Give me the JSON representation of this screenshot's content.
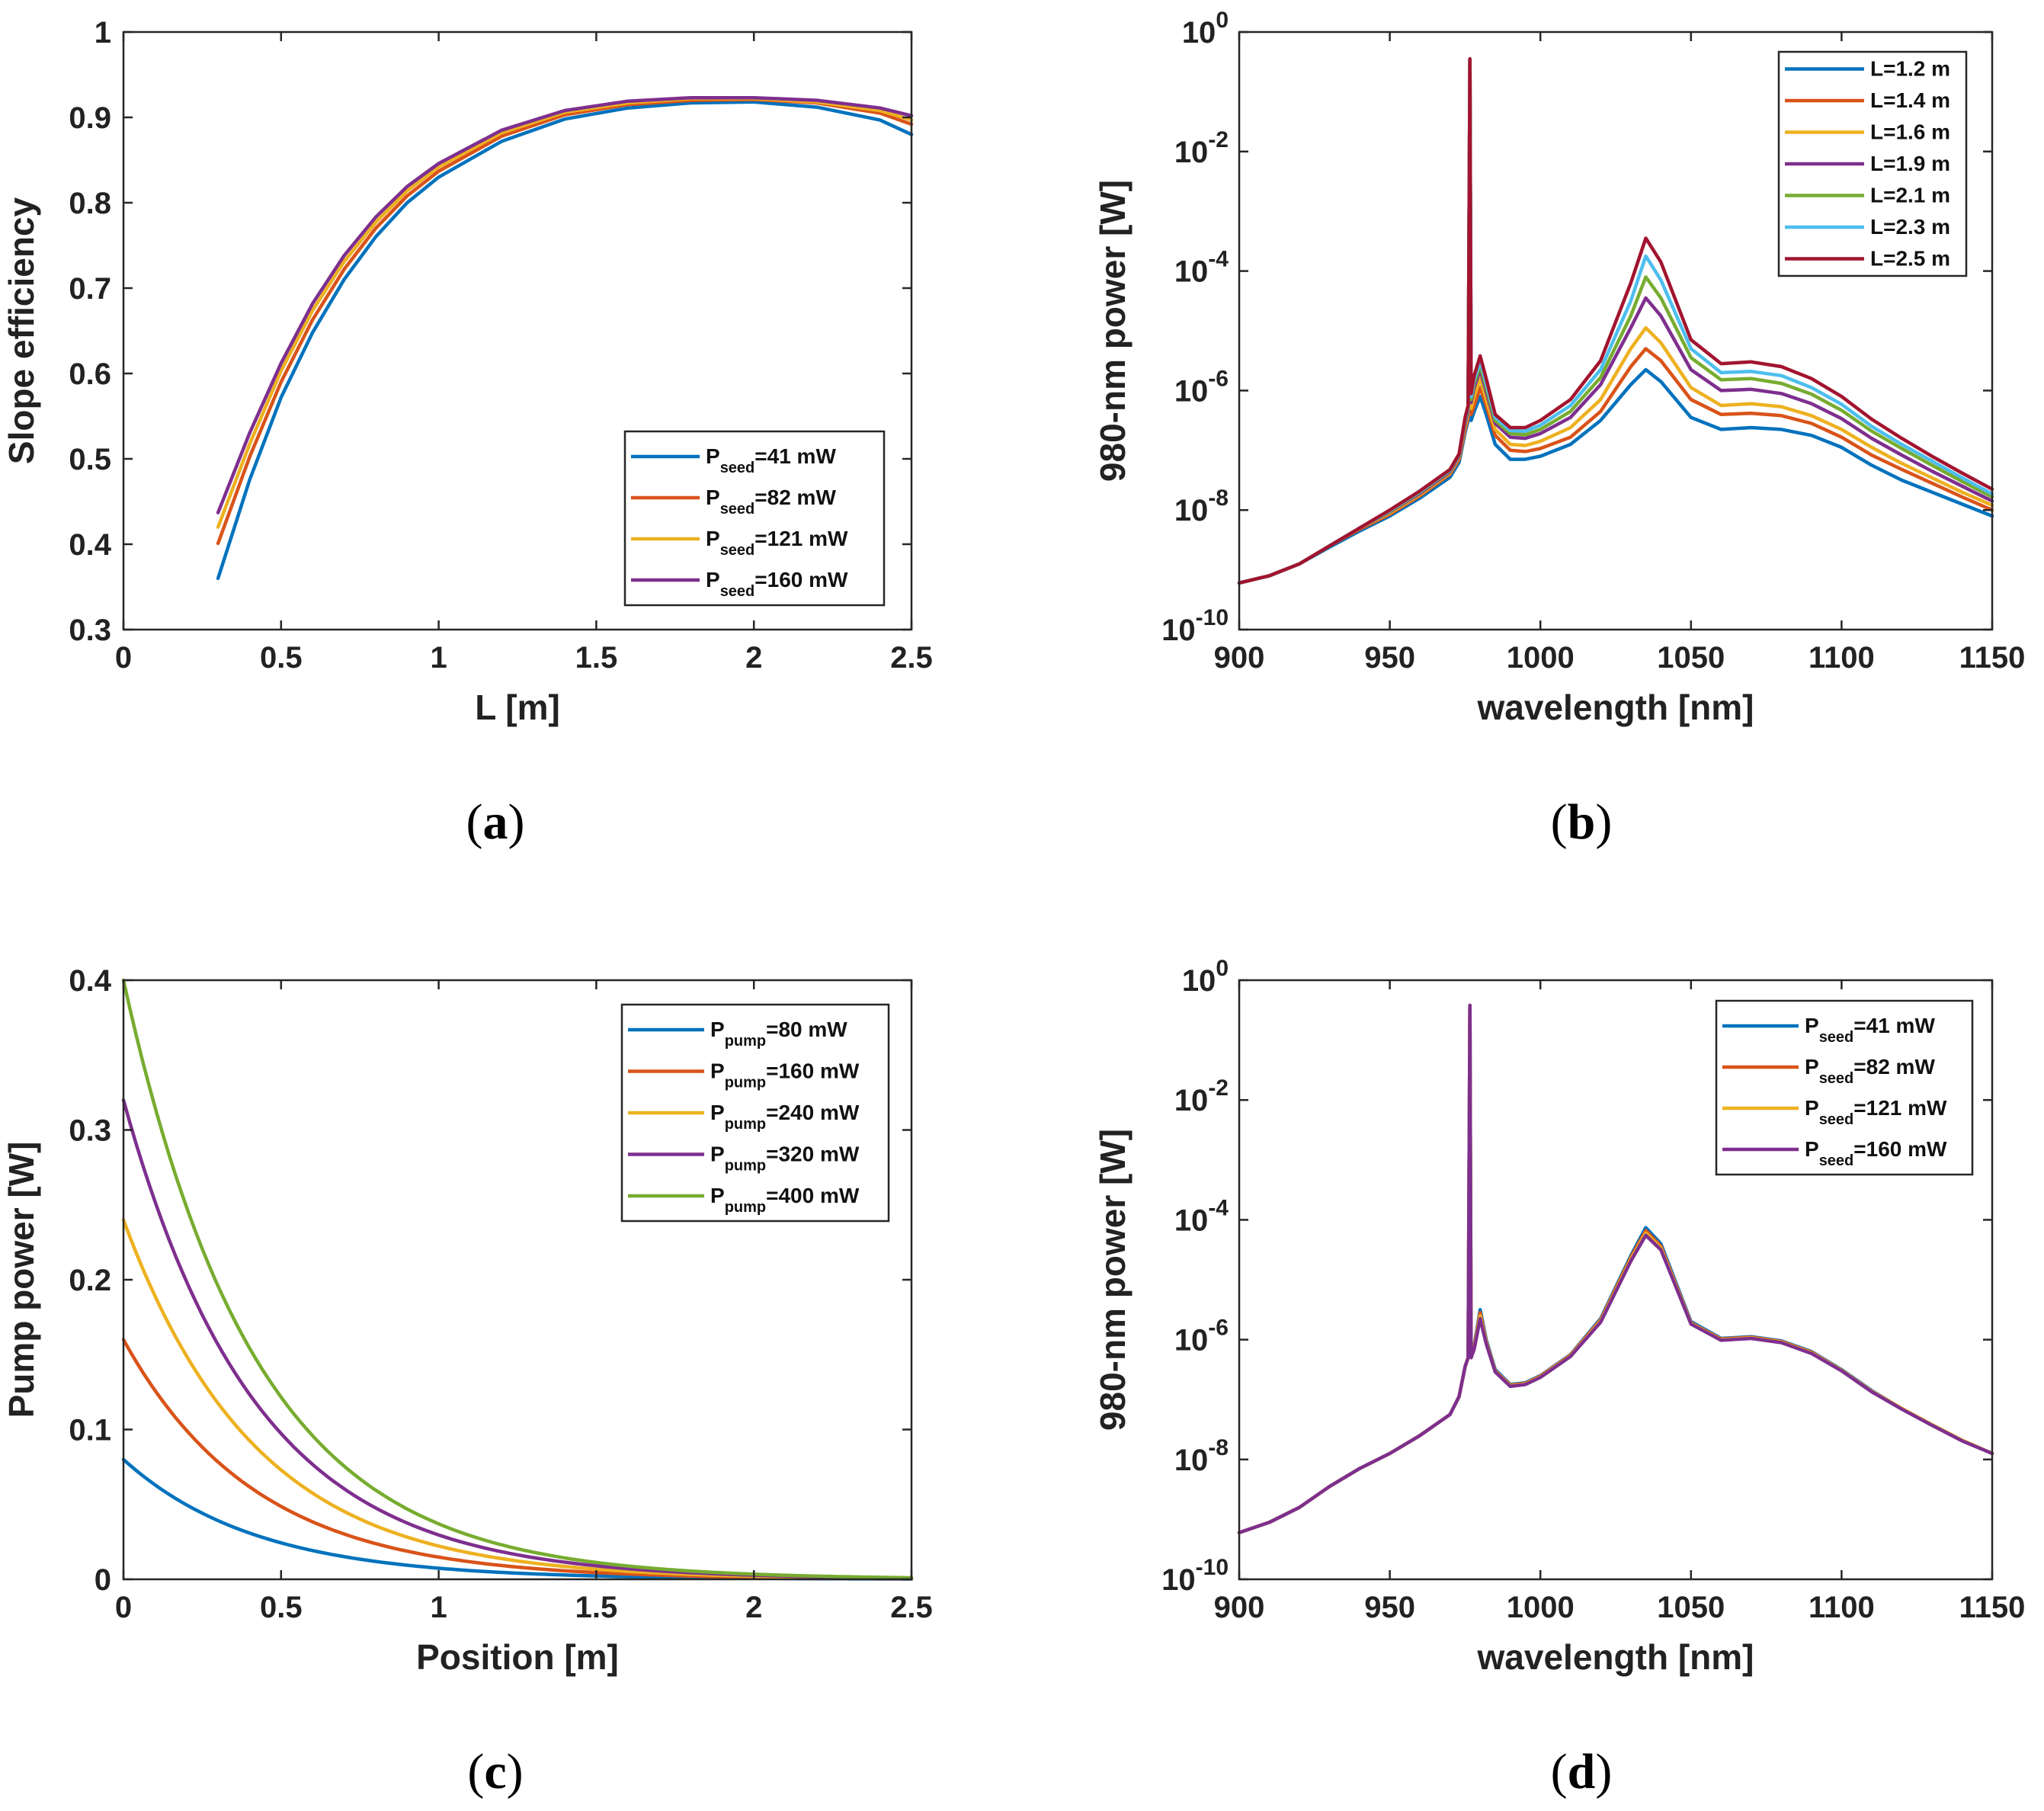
{
  "chart_data": [
    {
      "id": "a",
      "type": "line",
      "caption": "a",
      "xlabel": "L [m]",
      "ylabel": "Slope efficiency",
      "xlim": [
        0,
        2.5
      ],
      "ylim": [
        0.3,
        1
      ],
      "yscale": "linear",
      "xticks": [
        "0",
        "0.5",
        "1",
        "1.5",
        "2",
        "2.5"
      ],
      "yticks": [
        "0.3",
        "0.4",
        "0.5",
        "0.6",
        "0.7",
        "0.8",
        "0.9",
        "1"
      ],
      "legend_position": "bottom-right",
      "x": [
        0.3,
        0.4,
        0.5,
        0.6,
        0.7,
        0.8,
        0.9,
        1.0,
        1.2,
        1.4,
        1.6,
        1.8,
        2.0,
        2.2,
        2.4,
        2.5
      ],
      "series": [
        {
          "name": "P",
          "sub": "seed",
          "suffix": "=41 mW",
          "color": "#0072BD",
          "values": [
            0.36,
            0.475,
            0.572,
            0.648,
            0.71,
            0.76,
            0.8,
            0.83,
            0.872,
            0.898,
            0.911,
            0.917,
            0.918,
            0.912,
            0.897,
            0.88
          ]
        },
        {
          "name": "P",
          "sub": "seed",
          "suffix": "=82 mW",
          "color": "#D95319",
          "values": [
            0.401,
            0.502,
            0.59,
            0.663,
            0.722,
            0.77,
            0.808,
            0.837,
            0.878,
            0.903,
            0.915,
            0.92,
            0.921,
            0.917,
            0.905,
            0.892
          ]
        },
        {
          "name": "P",
          "sub": "seed",
          "suffix": "=121 mW",
          "color": "#EDB120",
          "values": [
            0.42,
            0.517,
            0.603,
            0.674,
            0.731,
            0.777,
            0.814,
            0.842,
            0.882,
            0.906,
            0.917,
            0.922,
            0.922,
            0.918,
            0.908,
            0.897
          ]
        },
        {
          "name": "P",
          "sub": "seed",
          "suffix": "=160 mW",
          "color": "#7E2F8E",
          "values": [
            0.437,
            0.53,
            0.612,
            0.682,
            0.738,
            0.783,
            0.819,
            0.846,
            0.885,
            0.908,
            0.919,
            0.923,
            0.923,
            0.92,
            0.911,
            0.902
          ]
        }
      ]
    },
    {
      "id": "b",
      "type": "line",
      "caption": "b",
      "xlabel": "wavelength [nm]",
      "ylabel": "980-nm power [W]",
      "xlim": [
        900,
        1150
      ],
      "ylim_exp": [
        -10,
        0
      ],
      "yscale": "log",
      "xticks": [
        "900",
        "950",
        "1000",
        "1050",
        "1100",
        "1150"
      ],
      "yticks_exp": [
        "-10",
        "-8",
        "-6",
        "-4",
        "-2",
        "0"
      ],
      "ytick_base": "10",
      "legend_position": "top-right",
      "x": [
        900,
        910,
        920,
        930,
        940,
        950,
        960,
        970,
        973,
        975,
        976,
        976.6,
        977,
        978,
        980,
        982,
        985,
        990,
        995,
        1000,
        1010,
        1020,
        1030,
        1035,
        1040,
        1050,
        1060,
        1070,
        1080,
        1090,
        1100,
        1110,
        1120,
        1130,
        1140,
        1150
      ],
      "series": [
        {
          "name": "L=1.2 m",
          "color": "#0072BD",
          "log10_values": [
            -9.22,
            -9.1,
            -8.9,
            -8.62,
            -8.35,
            -8.1,
            -7.8,
            -7.45,
            -7.2,
            -6.7,
            -6.5,
            -0.45,
            -6.5,
            -6.35,
            -6.1,
            -6.4,
            -6.9,
            -7.15,
            -7.15,
            -7.1,
            -6.9,
            -6.5,
            -5.9,
            -5.65,
            -5.85,
            -6.45,
            -6.65,
            -6.62,
            -6.65,
            -6.75,
            -6.95,
            -7.25,
            -7.5,
            -7.7,
            -7.9,
            -8.1
          ]
        },
        {
          "name": "L=1.4 m",
          "color": "#D95319",
          "log10_values": [
            -9.22,
            -9.1,
            -8.9,
            -8.6,
            -8.32,
            -8.07,
            -7.76,
            -7.4,
            -7.15,
            -6.65,
            -6.45,
            -0.45,
            -6.4,
            -6.25,
            -5.95,
            -6.25,
            -6.75,
            -7.0,
            -7.02,
            -6.97,
            -6.78,
            -6.35,
            -5.6,
            -5.3,
            -5.5,
            -6.15,
            -6.4,
            -6.38,
            -6.42,
            -6.55,
            -6.78,
            -7.08,
            -7.32,
            -7.55,
            -7.78,
            -8.0
          ]
        },
        {
          "name": "L=1.6 m",
          "color": "#EDB120",
          "log10_values": [
            -9.22,
            -9.1,
            -8.9,
            -8.6,
            -8.3,
            -8.05,
            -7.74,
            -7.38,
            -7.12,
            -6.6,
            -6.4,
            -0.45,
            -6.3,
            -6.1,
            -5.8,
            -6.15,
            -6.65,
            -6.9,
            -6.92,
            -6.85,
            -6.62,
            -6.15,
            -5.3,
            -4.95,
            -5.2,
            -5.95,
            -6.25,
            -6.22,
            -6.27,
            -6.42,
            -6.65,
            -6.95,
            -7.22,
            -7.46,
            -7.7,
            -7.92
          ]
        },
        {
          "name": "L=1.9 m",
          "color": "#7E2F8E",
          "log10_values": [
            -9.22,
            -9.1,
            -8.9,
            -8.6,
            -8.3,
            -8.03,
            -7.72,
            -7.36,
            -7.1,
            -6.55,
            -6.35,
            -0.45,
            -6.2,
            -5.95,
            -5.65,
            -6.02,
            -6.55,
            -6.78,
            -6.8,
            -6.72,
            -6.45,
            -5.9,
            -4.95,
            -4.45,
            -4.75,
            -5.65,
            -6.0,
            -5.98,
            -6.05,
            -6.22,
            -6.47,
            -6.8,
            -7.08,
            -7.35,
            -7.6,
            -7.85
          ]
        },
        {
          "name": "L=2.1 m",
          "color": "#77AC30",
          "log10_values": [
            -9.22,
            -9.1,
            -8.9,
            -8.6,
            -8.3,
            -8.02,
            -7.7,
            -7.34,
            -7.08,
            -6.5,
            -6.3,
            -0.45,
            -6.15,
            -5.88,
            -5.58,
            -5.95,
            -6.5,
            -6.72,
            -6.74,
            -6.65,
            -6.35,
            -5.78,
            -4.75,
            -4.1,
            -4.45,
            -5.45,
            -5.82,
            -5.8,
            -5.88,
            -6.06,
            -6.33,
            -6.68,
            -6.97,
            -7.25,
            -7.52,
            -7.78
          ]
        },
        {
          "name": "L=2.3 m",
          "color": "#4DBEEE",
          "log10_values": [
            -9.22,
            -9.1,
            -8.9,
            -8.6,
            -8.3,
            -8.01,
            -7.69,
            -7.33,
            -7.07,
            -6.48,
            -6.27,
            -0.45,
            -6.1,
            -5.82,
            -5.5,
            -5.88,
            -6.45,
            -6.67,
            -6.68,
            -6.58,
            -6.25,
            -5.65,
            -4.5,
            -3.75,
            -4.15,
            -5.3,
            -5.7,
            -5.68,
            -5.75,
            -5.95,
            -6.23,
            -6.6,
            -6.9,
            -7.18,
            -7.46,
            -7.73
          ]
        },
        {
          "name": "L=2.5 m",
          "color": "#A2142F",
          "log10_values": [
            -9.22,
            -9.1,
            -8.9,
            -8.6,
            -8.3,
            -8.0,
            -7.68,
            -7.32,
            -7.06,
            -6.45,
            -6.25,
            -0.45,
            -6.05,
            -5.75,
            -5.42,
            -5.8,
            -6.4,
            -6.62,
            -6.62,
            -6.5,
            -6.15,
            -5.5,
            -4.2,
            -3.45,
            -3.85,
            -5.15,
            -5.55,
            -5.52,
            -5.6,
            -5.8,
            -6.1,
            -6.48,
            -6.8,
            -7.1,
            -7.38,
            -7.65
          ]
        }
      ]
    },
    {
      "id": "c",
      "type": "line",
      "caption": "c",
      "xlabel": "Position [m]",
      "ylabel": "Pump power [W]",
      "xlim": [
        0,
        2.5
      ],
      "ylim": [
        0,
        0.4
      ],
      "yscale": "linear",
      "xticks": [
        "0",
        "0.5",
        "1",
        "1.5",
        "2",
        "2.5"
      ],
      "yticks": [
        "0",
        "0.1",
        "0.2",
        "0.3",
        "0.4"
      ],
      "legend_position": "top-right",
      "decay_model": "exponential",
      "series": [
        {
          "name": "P",
          "sub": "pump",
          "suffix": "=80 mW",
          "color": "#0072BD",
          "initial": 0.08,
          "decay_length": 0.42
        },
        {
          "name": "P",
          "sub": "pump",
          "suffix": "=160 mW",
          "color": "#D95319",
          "initial": 0.16,
          "decay_length": 0.42
        },
        {
          "name": "P",
          "sub": "pump",
          "suffix": "=240 mW",
          "color": "#EDB120",
          "initial": 0.24,
          "decay_length": 0.42
        },
        {
          "name": "P",
          "sub": "pump",
          "suffix": "=320 mW",
          "color": "#7E2F8E",
          "initial": 0.32,
          "decay_length": 0.42
        },
        {
          "name": "P",
          "sub": "pump",
          "suffix": "=400 mW",
          "color": "#77AC30",
          "initial": 0.4,
          "decay_length": 0.42
        }
      ]
    },
    {
      "id": "d",
      "type": "line",
      "caption": "d",
      "xlabel": "wavelength [nm]",
      "ylabel": "980-nm power [W]",
      "xlim": [
        900,
        1150
      ],
      "ylim_exp": [
        -10,
        0
      ],
      "yscale": "log",
      "xticks": [
        "900",
        "950",
        "1000",
        "1050",
        "1100",
        "1150"
      ],
      "yticks_exp": [
        "-10",
        "-8",
        "-6",
        "-4",
        "-2",
        "0"
      ],
      "ytick_base": "10",
      "legend_position": "top-right",
      "x": [
        900,
        910,
        920,
        930,
        940,
        950,
        960,
        970,
        973,
        975,
        976,
        976.6,
        977,
        978,
        980,
        982,
        985,
        990,
        995,
        1000,
        1010,
        1020,
        1030,
        1035,
        1040,
        1050,
        1060,
        1070,
        1080,
        1090,
        1100,
        1110,
        1120,
        1130,
        1140,
        1150
      ],
      "series": [
        {
          "name": "P",
          "sub": "seed",
          "suffix": "=41 mW",
          "color": "#0072BD",
          "log10_values": [
            -9.22,
            -9.05,
            -8.8,
            -8.45,
            -8.15,
            -7.9,
            -7.6,
            -7.25,
            -6.95,
            -6.45,
            -6.3,
            -0.42,
            -6.3,
            -6.1,
            -5.5,
            -6.0,
            -6.5,
            -6.75,
            -6.72,
            -6.6,
            -6.25,
            -5.65,
            -4.6,
            -4.13,
            -4.4,
            -5.7,
            -5.98,
            -5.95,
            -6.02,
            -6.2,
            -6.5,
            -6.85,
            -7.15,
            -7.42,
            -7.68,
            -7.9
          ]
        },
        {
          "name": "P",
          "sub": "seed",
          "suffix": "=82 mW",
          "color": "#D95319",
          "log10_values": [
            -9.22,
            -9.05,
            -8.8,
            -8.45,
            -8.15,
            -7.9,
            -7.6,
            -7.25,
            -6.95,
            -6.45,
            -6.3,
            -0.42,
            -6.3,
            -6.12,
            -5.55,
            -6.03,
            -6.52,
            -6.76,
            -6.73,
            -6.61,
            -6.26,
            -5.67,
            -4.63,
            -4.18,
            -4.44,
            -5.72,
            -5.99,
            -5.96,
            -6.03,
            -6.21,
            -6.51,
            -6.86,
            -7.15,
            -7.42,
            -7.68,
            -7.9
          ]
        },
        {
          "name": "P",
          "sub": "seed",
          "suffix": "=121 mW",
          "color": "#EDB120",
          "log10_values": [
            -9.22,
            -9.05,
            -8.8,
            -8.45,
            -8.15,
            -7.9,
            -7.6,
            -7.25,
            -6.95,
            -6.45,
            -6.3,
            -0.42,
            -6.3,
            -6.14,
            -5.6,
            -6.05,
            -6.53,
            -6.77,
            -6.74,
            -6.62,
            -6.27,
            -5.69,
            -4.66,
            -4.22,
            -4.47,
            -5.73,
            -6.0,
            -5.97,
            -6.04,
            -6.22,
            -6.51,
            -6.86,
            -7.15,
            -7.42,
            -7.68,
            -7.9
          ]
        },
        {
          "name": "P",
          "sub": "seed",
          "suffix": "=160 mW",
          "color": "#7E2F8E",
          "log10_values": [
            -9.22,
            -9.05,
            -8.8,
            -8.45,
            -8.15,
            -7.9,
            -7.6,
            -7.25,
            -6.95,
            -6.45,
            -6.3,
            -0.42,
            -6.3,
            -6.16,
            -5.65,
            -6.07,
            -6.54,
            -6.78,
            -6.75,
            -6.63,
            -6.28,
            -5.71,
            -4.69,
            -4.26,
            -4.5,
            -5.74,
            -6.01,
            -5.98,
            -6.05,
            -6.23,
            -6.52,
            -6.87,
            -7.16,
            -7.43,
            -7.69,
            -7.9
          ]
        }
      ]
    }
  ]
}
